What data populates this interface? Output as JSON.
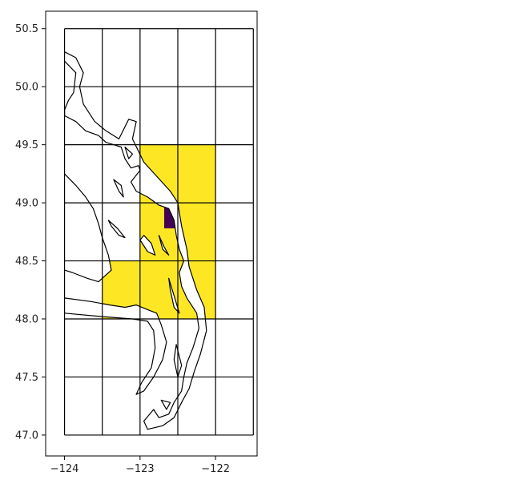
{
  "chart_data": {
    "type": "heatmap",
    "title": "",
    "xlabel": "",
    "ylabel": "",
    "xlim": [
      -124.25,
      -121.45
    ],
    "ylim": [
      46.82,
      50.65
    ],
    "x_ticks": [
      {
        "value": -124,
        "label": "−124"
      },
      {
        "value": -123,
        "label": "−123"
      },
      {
        "value": -122,
        "label": "−122"
      }
    ],
    "y_ticks": [
      {
        "value": 47.0,
        "label": "47.0"
      },
      {
        "value": 47.5,
        "label": "47.5"
      },
      {
        "value": 48.0,
        "label": "48.0"
      },
      {
        "value": 48.5,
        "label": "48.5"
      },
      {
        "value": 49.0,
        "label": "49.0"
      },
      {
        "value": 49.5,
        "label": "49.5"
      },
      {
        "value": 50.0,
        "label": "50.0"
      },
      {
        "value": 50.5,
        "label": "50.5"
      }
    ],
    "grid": {
      "lon_edges": [
        -124.0,
        -123.5,
        -123.0,
        -122.5,
        -122.0,
        -121.5
      ],
      "lat_edges": [
        47.0,
        47.5,
        48.0,
        48.5,
        49.0,
        49.5,
        50.0,
        50.5
      ]
    },
    "cells": [
      {
        "lon": [
          -123.5,
          -123.0
        ],
        "lat": [
          48.0,
          48.5
        ],
        "class": "yellow"
      },
      {
        "lon": [
          -123.0,
          -122.5
        ],
        "lat": [
          48.0,
          48.5
        ],
        "class": "yellow"
      },
      {
        "lon": [
          -122.5,
          -122.0
        ],
        "lat": [
          48.0,
          48.5
        ],
        "class": "yellow"
      },
      {
        "lon": [
          -123.0,
          -122.5
        ],
        "lat": [
          48.5,
          49.0
        ],
        "class": "yellow"
      },
      {
        "lon": [
          -122.5,
          -122.0
        ],
        "lat": [
          48.5,
          49.0
        ],
        "class": "yellow"
      },
      {
        "lon": [
          -123.0,
          -122.5
        ],
        "lat": [
          49.0,
          49.5
        ],
        "class": "yellow"
      },
      {
        "lon": [
          -122.5,
          -122.0
        ],
        "lat": [
          49.0,
          49.5
        ],
        "class": "yellow"
      },
      {
        "lon": [
          -122.5,
          -122.0
        ],
        "lat": [
          48.5,
          49.0
        ],
        "class": "yellow"
      },
      {
        "lon": [
          -122.68,
          -122.5
        ],
        "lat": [
          48.78,
          49.0
        ],
        "class": "purple"
      }
    ],
    "colors": {
      "yellow": "#fde725",
      "purple": "#440154",
      "edge": "#000000"
    },
    "coastline": {
      "mainland": [
        [
          -124.0,
          50.22
        ],
        [
          -123.85,
          50.12
        ],
        [
          -123.88,
          49.95
        ],
        [
          -123.95,
          49.88
        ],
        [
          -124.0,
          49.8
        ],
        [
          -124.0,
          49.75
        ],
        [
          -123.85,
          49.7
        ],
        [
          -123.72,
          49.62
        ],
        [
          -123.55,
          49.58
        ],
        [
          -123.45,
          49.52
        ],
        [
          -123.35,
          49.5
        ],
        [
          -123.25,
          49.48
        ],
        [
          -123.2,
          49.38
        ],
        [
          -123.12,
          49.3
        ],
        [
          -123.02,
          49.32
        ],
        [
          -123.0,
          49.28
        ],
        [
          -123.12,
          49.18
        ],
        [
          -123.05,
          49.1
        ],
        [
          -122.9,
          49.05
        ],
        [
          -122.75,
          48.98
        ],
        [
          -122.62,
          48.95
        ],
        [
          -122.55,
          48.85
        ],
        [
          -122.52,
          48.72
        ],
        [
          -122.48,
          48.6
        ],
        [
          -122.42,
          48.5
        ],
        [
          -122.48,
          48.4
        ],
        [
          -122.45,
          48.28
        ],
        [
          -122.38,
          48.18
        ],
        [
          -122.25,
          48.05
        ],
        [
          -122.22,
          47.92
        ],
        [
          -122.3,
          47.75
        ],
        [
          -122.38,
          47.62
        ],
        [
          -122.42,
          47.5
        ],
        [
          -122.45,
          47.38
        ],
        [
          -122.55,
          47.28
        ],
        [
          -122.62,
          47.18
        ],
        [
          -122.75,
          47.15
        ],
        [
          -122.82,
          47.22
        ],
        [
          -122.95,
          47.12
        ],
        [
          -122.9,
          47.05
        ],
        [
          -122.7,
          47.08
        ],
        [
          -122.55,
          47.15
        ],
        [
          -122.45,
          47.28
        ],
        [
          -122.35,
          47.4
        ],
        [
          -122.28,
          47.55
        ],
        [
          -122.2,
          47.7
        ],
        [
          -122.12,
          47.9
        ],
        [
          -122.15,
          48.1
        ],
        [
          -122.25,
          48.25
        ],
        [
          -122.35,
          48.45
        ],
        [
          -122.38,
          48.6
        ],
        [
          -122.45,
          48.8
        ],
        [
          -122.5,
          49.0
        ],
        [
          -122.6,
          49.1
        ],
        [
          -122.95,
          49.35
        ],
        [
          -123.1,
          49.55
        ],
        [
          -123.05,
          49.7
        ],
        [
          -123.15,
          49.72
        ],
        [
          -123.28,
          49.55
        ],
        [
          -123.45,
          49.62
        ],
        [
          -123.6,
          49.7
        ],
        [
          -123.75,
          49.85
        ],
        [
          -123.8,
          50.0
        ],
        [
          -123.75,
          50.12
        ],
        [
          -123.85,
          50.25
        ],
        [
          -124.0,
          50.3
        ]
      ],
      "peninsula": [
        [
          -124.0,
          48.18
        ],
        [
          -123.65,
          48.15
        ],
        [
          -123.4,
          48.12
        ],
        [
          -123.2,
          48.1
        ],
        [
          -123.05,
          48.12
        ],
        [
          -122.9,
          48.08
        ],
        [
          -122.78,
          48.05
        ],
        [
          -122.72,
          47.95
        ],
        [
          -122.65,
          47.8
        ],
        [
          -122.7,
          47.65
        ],
        [
          -122.82,
          47.5
        ],
        [
          -122.95,
          47.38
        ],
        [
          -123.05,
          47.35
        ],
        [
          -122.98,
          47.45
        ],
        [
          -122.85,
          47.58
        ],
        [
          -122.8,
          47.75
        ],
        [
          -122.82,
          47.9
        ],
        [
          -122.9,
          47.98
        ],
        [
          -123.1,
          48.0
        ],
        [
          -123.5,
          48.02
        ],
        [
          -124.0,
          48.05
        ]
      ],
      "vancouver_island": [
        [
          -124.0,
          49.25
        ],
        [
          -123.85,
          49.15
        ],
        [
          -123.72,
          49.05
        ],
        [
          -123.62,
          48.95
        ],
        [
          -123.55,
          48.82
        ],
        [
          -123.5,
          48.7
        ],
        [
          -123.42,
          48.55
        ],
        [
          -123.38,
          48.42
        ],
        [
          -123.55,
          48.32
        ],
        [
          -123.7,
          48.35
        ],
        [
          -123.9,
          48.4
        ],
        [
          -124.0,
          48.42
        ]
      ],
      "islands": [
        [
          [
            -123.42,
            48.85
          ],
          [
            -123.3,
            48.78
          ],
          [
            -123.2,
            48.7
          ],
          [
            -123.28,
            48.72
          ],
          [
            -123.38,
            48.8
          ]
        ],
        [
          [
            -123.35,
            49.2
          ],
          [
            -123.28,
            49.1
          ],
          [
            -123.22,
            49.05
          ],
          [
            -123.25,
            49.15
          ]
        ],
        [
          [
            -122.95,
            48.72
          ],
          [
            -122.85,
            48.65
          ],
          [
            -122.8,
            48.55
          ],
          [
            -122.9,
            48.58
          ],
          [
            -123.0,
            48.68
          ]
        ],
        [
          [
            -122.75,
            48.72
          ],
          [
            -122.68,
            48.62
          ],
          [
            -122.62,
            48.55
          ],
          [
            -122.7,
            48.6
          ]
        ],
        [
          [
            -122.62,
            48.35
          ],
          [
            -122.55,
            48.2
          ],
          [
            -122.48,
            48.05
          ],
          [
            -122.55,
            48.1
          ],
          [
            -122.6,
            48.25
          ]
        ],
        [
          [
            -122.52,
            47.78
          ],
          [
            -122.45,
            47.6
          ],
          [
            -122.5,
            47.5
          ],
          [
            -122.55,
            47.65
          ]
        ],
        [
          [
            -122.72,
            47.3
          ],
          [
            -122.65,
            47.22
          ],
          [
            -122.6,
            47.28
          ]
        ],
        [
          [
            -123.2,
            49.48
          ],
          [
            -123.15,
            49.38
          ],
          [
            -123.1,
            49.42
          ]
        ]
      ]
    }
  }
}
